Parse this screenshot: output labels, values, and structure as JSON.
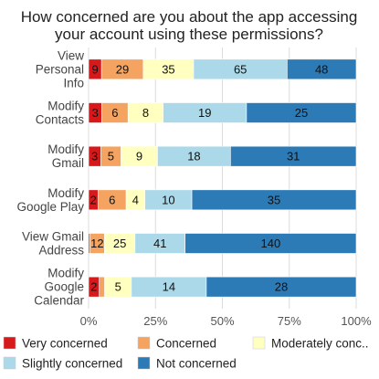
{
  "chart_data": {
    "type": "bar",
    "orientation": "horizontal",
    "stacked": "percent",
    "title": "How concerned are you about the app accessing your account using these permissions?",
    "title_lines": [
      "How concerned are you about the app accessing",
      "your account using these permissions?"
    ],
    "categories": [
      "View Personal Info",
      "Modify Contacts",
      "Modify Gmail",
      "Modify Google Play",
      "View Gmail Address",
      "Modify Google Calendar"
    ],
    "category_lines": [
      [
        "View",
        "Personal",
        "Info"
      ],
      [
        "Modify",
        "Contacts"
      ],
      [
        "Modify",
        "Gmail"
      ],
      [
        "Modify",
        "Google Play"
      ],
      [
        "View Gmail",
        "Address"
      ],
      [
        "Modify",
        "Google",
        "Calendar"
      ]
    ],
    "series": [
      {
        "name": "Very concerned",
        "legend_label": "Very concerned",
        "color": "#d7191c",
        "values": [
          9,
          3,
          3,
          2,
          1,
          2
        ]
      },
      {
        "name": "Concerned",
        "legend_label": "Concerned",
        "color": "#f4a460",
        "values": [
          29,
          6,
          5,
          6,
          12,
          1
        ]
      },
      {
        "name": "Moderately concerned",
        "legend_label": "Moderately conc..",
        "color": "#ffffbf",
        "values": [
          35,
          8,
          9,
          4,
          25,
          5
        ]
      },
      {
        "name": "Slightly concerned",
        "legend_label": "Slightly concerned",
        "color": "#abd9e9",
        "values": [
          65,
          19,
          18,
          10,
          41,
          14
        ]
      },
      {
        "name": "Not concerned",
        "legend_label": "Not concerned",
        "color": "#2c7bb6",
        "values": [
          48,
          25,
          31,
          35,
          140,
          28
        ]
      }
    ],
    "data_labels": [
      [
        "9",
        "29",
        "35",
        "65",
        "48"
      ],
      [
        "3",
        "6",
        "8",
        "19",
        "25"
      ],
      [
        "3",
        "5",
        "9",
        "18",
        "31"
      ],
      [
        "2",
        "6",
        "4",
        "10",
        "35"
      ],
      [
        "",
        "12",
        "25",
        "41",
        "140"
      ],
      [
        "2",
        "",
        "5",
        "14",
        "28"
      ]
    ],
    "x_ticks": [
      "0%",
      "25%",
      "50%",
      "75%",
      "100%"
    ],
    "xlim": [
      0,
      100
    ],
    "grid": true,
    "legend_position": "bottom"
  }
}
